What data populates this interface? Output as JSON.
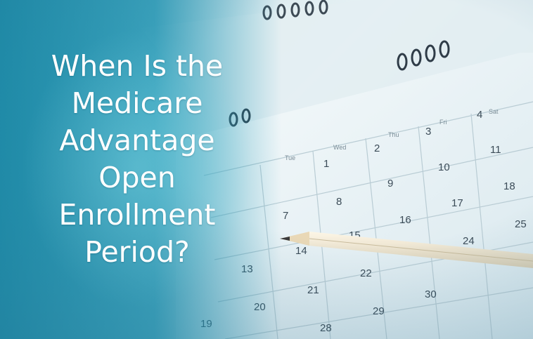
{
  "headline": {
    "lines": [
      "When Is the",
      "Medicare",
      "Advantage",
      "Open",
      "Enrollment",
      "Period?"
    ]
  },
  "calendar": {
    "weekday_labels": [
      "Tue",
      "Wed",
      "Thu",
      "Fri",
      "Sat"
    ],
    "dates": [
      "1",
      "2",
      "3",
      "4",
      "7",
      "8",
      "9",
      "10",
      "11",
      "13",
      "14",
      "15",
      "16",
      "17",
      "18",
      "19",
      "20",
      "21",
      "22",
      "24",
      "25",
      "28",
      "29",
      "30"
    ]
  },
  "colors": {
    "overlay": "#1e96b4",
    "headline_text": "#ffffff",
    "calendar_paper": "#f4f8f9"
  },
  "icons": {
    "spiral_binding": "spiral-binding-icon",
    "pencil": "pencil-icon"
  }
}
